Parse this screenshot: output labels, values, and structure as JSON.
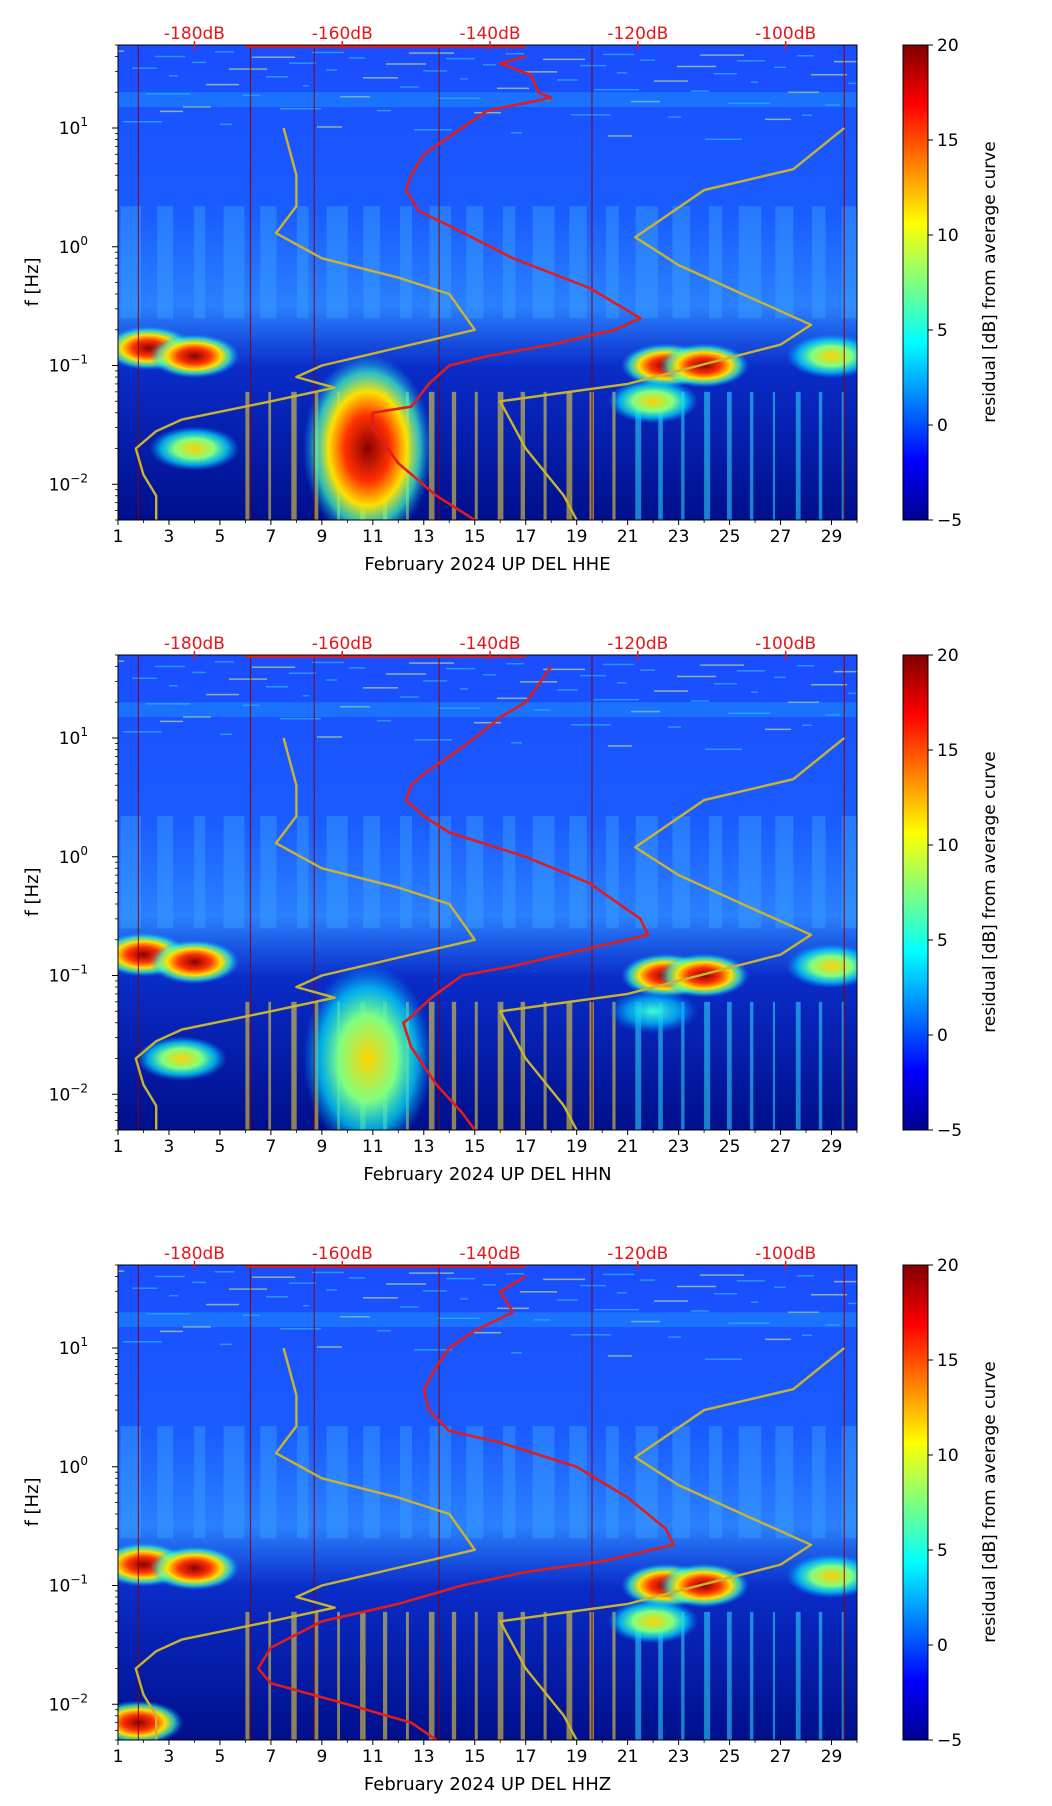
{
  "colors": {
    "spectrogram_low": "#000f8c",
    "pdf_curve": "#e01d1d",
    "noise_model": "#c9b430",
    "db_label": "#e8161c"
  },
  "chart_data": [
    {
      "type": "heatmap",
      "title": "",
      "xlabel": "February 2024 UP DEL  HHE",
      "ylabel": "f [Hz]",
      "x_ticks": [
        "1",
        "3",
        "5",
        "7",
        "9",
        "11",
        "13",
        "15",
        "17",
        "19",
        "21",
        "23",
        "25",
        "27",
        "29"
      ],
      "xlim": [
        1,
        30
      ],
      "y_scale": "log",
      "ylim": [
        0.005,
        50
      ],
      "y_ticks": [
        {
          "base": "10",
          "exp": "1"
        },
        {
          "base": "10",
          "exp": "0"
        },
        {
          "base": "10",
          "exp": "−1"
        },
        {
          "base": "10",
          "exp": "−2"
        }
      ],
      "db_axis_labels": [
        "-180dB",
        "-160dB",
        "-140dB",
        "-120dB",
        "-100dB"
      ],
      "db_axis_day_positions": [
        4.0,
        9.8,
        15.6,
        21.4,
        27.2
      ],
      "colorbar": {
        "label": "residual [dB] from average curve",
        "range": [
          -5,
          20
        ],
        "ticks": [
          "20",
          "15",
          "10",
          "5",
          "0",
          "−5"
        ]
      },
      "blobs": [
        {
          "day": 2.2,
          "freq": 0.14,
          "strength": 20
        },
        {
          "day": 4.0,
          "freq": 0.12,
          "strength": 18
        },
        {
          "day": 10.8,
          "freq": 0.02,
          "strength": 15
        },
        {
          "day": 22.5,
          "freq": 0.1,
          "strength": 16
        },
        {
          "day": 24.0,
          "freq": 0.1,
          "strength": 14
        },
        {
          "day": 22.0,
          "freq": 0.05,
          "strength": 9
        },
        {
          "day": 29.0,
          "freq": 0.12,
          "strength": 12
        },
        {
          "day": 4.0,
          "freq": 0.02,
          "strength": 10
        }
      ],
      "series": [
        {
          "name": "PDF mode curve",
          "points": [
            [
              17.0,
              40
            ],
            [
              16.0,
              35
            ],
            [
              17.2,
              28
            ],
            [
              17.5,
              20
            ],
            [
              18.0,
              18
            ],
            [
              15.5,
              14
            ],
            [
              14.5,
              10
            ],
            [
              13.0,
              6
            ],
            [
              12.5,
              4
            ],
            [
              12.3,
              3
            ],
            [
              12.8,
              2
            ],
            [
              14.0,
              1.5
            ],
            [
              16.5,
              0.8
            ],
            [
              19.5,
              0.45
            ],
            [
              21.5,
              0.25
            ],
            [
              20.5,
              0.2
            ],
            [
              18.0,
              0.15
            ],
            [
              15.5,
              0.12
            ],
            [
              14.0,
              0.1
            ],
            [
              13.2,
              0.07
            ],
            [
              12.5,
              0.045
            ],
            [
              11.0,
              0.04
            ],
            [
              11.0,
              0.03
            ],
            [
              12.0,
              0.015
            ],
            [
              13.5,
              0.008
            ],
            [
              15.0,
              0.005
            ]
          ]
        },
        {
          "name": "NLNM/NHNM",
          "points": [
            [
              7.5,
              10
            ],
            [
              8.0,
              4
            ],
            [
              8.0,
              2.2
            ],
            [
              7.2,
              1.3
            ],
            [
              9.0,
              0.8
            ],
            [
              12.0,
              0.55
            ],
            [
              14.0,
              0.4
            ],
            [
              15.0,
              0.2
            ],
            [
              9.0,
              0.1
            ],
            [
              8.0,
              0.08
            ],
            [
              9.5,
              0.065
            ],
            [
              7.0,
              0.05
            ],
            [
              3.5,
              0.035
            ],
            [
              2.5,
              0.028
            ],
            [
              1.7,
              0.02
            ],
            [
              2.0,
              0.012
            ],
            [
              2.5,
              0.008
            ],
            [
              2.5,
              0.005
            ]
          ]
        },
        {
          "name": "NHNM",
          "points": [
            [
              29.5,
              10
            ],
            [
              27.5,
              4.5
            ],
            [
              24.0,
              3.0
            ],
            [
              21.3,
              1.2
            ],
            [
              23.0,
              0.7
            ],
            [
              25.5,
              0.4
            ],
            [
              28.2,
              0.22
            ],
            [
              27.0,
              0.15
            ],
            [
              21.0,
              0.07
            ],
            [
              16.0,
              0.05
            ],
            [
              17.0,
              0.02
            ],
            [
              18.5,
              0.008
            ],
            [
              19.0,
              0.005
            ]
          ]
        }
      ]
    },
    {
      "type": "heatmap",
      "title": "",
      "xlabel": "February 2024 UP DEL  HHN",
      "ylabel": "f [Hz]",
      "x_ticks": [
        "1",
        "3",
        "5",
        "7",
        "9",
        "11",
        "13",
        "15",
        "17",
        "19",
        "21",
        "23",
        "25",
        "27",
        "29"
      ],
      "xlim": [
        1,
        30
      ],
      "y_scale": "log",
      "ylim": [
        0.005,
        50
      ],
      "y_ticks": [
        {
          "base": "10",
          "exp": "1"
        },
        {
          "base": "10",
          "exp": "0"
        },
        {
          "base": "10",
          "exp": "−1"
        },
        {
          "base": "10",
          "exp": "−2"
        }
      ],
      "db_axis_labels": [
        "-180dB",
        "-160dB",
        "-140dB",
        "-120dB",
        "-100dB"
      ],
      "db_axis_day_positions": [
        4.0,
        9.8,
        15.6,
        21.4,
        27.2
      ],
      "colorbar": {
        "label": "residual [dB] from average curve",
        "range": [
          -5,
          20
        ],
        "ticks": [
          "20",
          "15",
          "10",
          "5",
          "0",
          "−5"
        ]
      },
      "blobs": [
        {
          "day": 2.0,
          "freq": 0.15,
          "strength": 20
        },
        {
          "day": 4.0,
          "freq": 0.13,
          "strength": 18
        },
        {
          "day": 10.8,
          "freq": 0.02,
          "strength": 13
        },
        {
          "day": 22.5,
          "freq": 0.1,
          "strength": 16
        },
        {
          "day": 24.0,
          "freq": 0.1,
          "strength": 14
        },
        {
          "day": 22.0,
          "freq": 0.05,
          "strength": 8
        },
        {
          "day": 29.0,
          "freq": 0.12,
          "strength": 12
        },
        {
          "day": 3.5,
          "freq": 0.02,
          "strength": 9
        }
      ],
      "series": [
        {
          "name": "PDF mode curve",
          "points": [
            [
              18.0,
              40
            ],
            [
              17.5,
              28
            ],
            [
              17.0,
              20
            ],
            [
              16.0,
              15
            ],
            [
              15.0,
              10
            ],
            [
              14.0,
              7
            ],
            [
              13.0,
              5
            ],
            [
              12.5,
              4
            ],
            [
              12.3,
              3
            ],
            [
              13.0,
              2.2
            ],
            [
              14.0,
              1.6
            ],
            [
              17.0,
              1.0
            ],
            [
              19.5,
              0.6
            ],
            [
              21.5,
              0.3
            ],
            [
              21.8,
              0.22
            ],
            [
              19.0,
              0.16
            ],
            [
              16.5,
              0.12
            ],
            [
              14.5,
              0.1
            ],
            [
              13.3,
              0.065
            ],
            [
              12.5,
              0.045
            ],
            [
              12.2,
              0.04
            ],
            [
              12.5,
              0.025
            ],
            [
              13.5,
              0.012
            ],
            [
              14.5,
              0.007
            ],
            [
              15.0,
              0.005
            ]
          ]
        },
        {
          "name": "NLNM/NHNM",
          "points": [
            [
              7.5,
              10
            ],
            [
              8.0,
              4
            ],
            [
              8.0,
              2.2
            ],
            [
              7.2,
              1.3
            ],
            [
              9.0,
              0.8
            ],
            [
              12.0,
              0.55
            ],
            [
              14.0,
              0.4
            ],
            [
              15.0,
              0.2
            ],
            [
              9.0,
              0.1
            ],
            [
              8.0,
              0.08
            ],
            [
              9.5,
              0.065
            ],
            [
              7.0,
              0.05
            ],
            [
              3.5,
              0.035
            ],
            [
              2.5,
              0.028
            ],
            [
              1.7,
              0.02
            ],
            [
              2.0,
              0.012
            ],
            [
              2.5,
              0.008
            ],
            [
              2.5,
              0.005
            ]
          ]
        },
        {
          "name": "NHNM",
          "points": [
            [
              29.5,
              10
            ],
            [
              27.5,
              4.5
            ],
            [
              24.0,
              3.0
            ],
            [
              21.3,
              1.2
            ],
            [
              23.0,
              0.7
            ],
            [
              25.5,
              0.4
            ],
            [
              28.2,
              0.22
            ],
            [
              27.0,
              0.15
            ],
            [
              21.0,
              0.07
            ],
            [
              16.0,
              0.05
            ],
            [
              17.0,
              0.02
            ],
            [
              18.5,
              0.008
            ],
            [
              19.0,
              0.005
            ]
          ]
        }
      ]
    },
    {
      "type": "heatmap",
      "title": "",
      "xlabel": "February 2024 UP DEL  HHZ",
      "ylabel": "f [Hz]",
      "x_ticks": [
        "1",
        "3",
        "5",
        "7",
        "9",
        "11",
        "13",
        "15",
        "17",
        "19",
        "21",
        "23",
        "25",
        "27",
        "29"
      ],
      "xlim": [
        1,
        30
      ],
      "y_scale": "log",
      "ylim": [
        0.005,
        50
      ],
      "y_ticks": [
        {
          "base": "10",
          "exp": "1"
        },
        {
          "base": "10",
          "exp": "0"
        },
        {
          "base": "10",
          "exp": "−1"
        },
        {
          "base": "10",
          "exp": "−2"
        }
      ],
      "db_axis_labels": [
        "-180dB",
        "-160dB",
        "-140dB",
        "-120dB",
        "-100dB"
      ],
      "db_axis_day_positions": [
        4.0,
        9.8,
        15.6,
        21.4,
        27.2
      ],
      "colorbar": {
        "label": "residual [dB] from average curve",
        "range": [
          -5,
          20
        ],
        "ticks": [
          "20",
          "15",
          "10",
          "5",
          "0",
          "−5"
        ]
      },
      "blobs": [
        {
          "day": 2.0,
          "freq": 0.15,
          "strength": 20
        },
        {
          "day": 4.0,
          "freq": 0.14,
          "strength": 18
        },
        {
          "day": 1.8,
          "freq": 0.007,
          "strength": 16
        },
        {
          "day": 22.5,
          "freq": 0.1,
          "strength": 16
        },
        {
          "day": 24.0,
          "freq": 0.1,
          "strength": 15
        },
        {
          "day": 22.0,
          "freq": 0.05,
          "strength": 10
        },
        {
          "day": 29.0,
          "freq": 0.12,
          "strength": 12
        }
      ],
      "series": [
        {
          "name": "PDF mode curve",
          "points": [
            [
              17.0,
              40
            ],
            [
              16.0,
              30
            ],
            [
              16.5,
              20
            ],
            [
              15.0,
              14
            ],
            [
              14.0,
              10
            ],
            [
              13.5,
              7
            ],
            [
              13.0,
              4.5
            ],
            [
              13.2,
              3
            ],
            [
              14.0,
              2.0
            ],
            [
              16.0,
              1.6
            ],
            [
              19.0,
              1.0
            ],
            [
              21.0,
              0.55
            ],
            [
              22.5,
              0.3
            ],
            [
              22.8,
              0.22
            ],
            [
              20.0,
              0.16
            ],
            [
              17.0,
              0.13
            ],
            [
              14.5,
              0.1
            ],
            [
              12.0,
              0.07
            ],
            [
              9.0,
              0.05
            ],
            [
              7.0,
              0.03
            ],
            [
              6.5,
              0.02
            ],
            [
              7.0,
              0.015
            ],
            [
              10.0,
              0.01
            ],
            [
              12.5,
              0.007
            ],
            [
              13.5,
              0.005
            ]
          ]
        },
        {
          "name": "NLNM/NHNM",
          "points": [
            [
              7.5,
              10
            ],
            [
              8.0,
              4
            ],
            [
              8.0,
              2.2
            ],
            [
              7.2,
              1.3
            ],
            [
              9.0,
              0.8
            ],
            [
              12.0,
              0.55
            ],
            [
              14.0,
              0.4
            ],
            [
              15.0,
              0.2
            ],
            [
              9.0,
              0.1
            ],
            [
              8.0,
              0.08
            ],
            [
              9.5,
              0.065
            ],
            [
              7.0,
              0.05
            ],
            [
              3.5,
              0.035
            ],
            [
              2.5,
              0.028
            ],
            [
              1.7,
              0.02
            ],
            [
              2.0,
              0.012
            ],
            [
              2.5,
              0.008
            ],
            [
              2.5,
              0.005
            ]
          ]
        },
        {
          "name": "NHNM",
          "points": [
            [
              29.5,
              10
            ],
            [
              27.5,
              4.5
            ],
            [
              24.0,
              3.0
            ],
            [
              21.3,
              1.2
            ],
            [
              23.0,
              0.7
            ],
            [
              25.5,
              0.4
            ],
            [
              28.2,
              0.22
            ],
            [
              27.0,
              0.15
            ],
            [
              21.0,
              0.07
            ],
            [
              16.0,
              0.05
            ],
            [
              17.0,
              0.02
            ],
            [
              18.5,
              0.008
            ],
            [
              19.0,
              0.005
            ]
          ]
        }
      ]
    }
  ]
}
